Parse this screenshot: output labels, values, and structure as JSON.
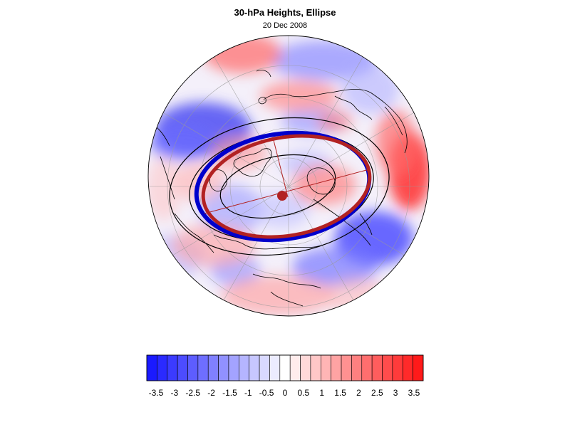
{
  "figure": {
    "title": "30-hPa Heights, Ellipse",
    "date": "20 Dec 2008"
  },
  "colorbar": {
    "colors": [
      "#1a1aff",
      "#2a2aff",
      "#3b3bff",
      "#4c4cff",
      "#5d5dff",
      "#6e6eff",
      "#8080ff",
      "#9191ff",
      "#a3a3ff",
      "#b5b5ff",
      "#c7c7ff",
      "#d9d9ff",
      "#ececff",
      "#ffffff",
      "#ffecec",
      "#ffd9d9",
      "#ffc7c7",
      "#ffb5b5",
      "#ffa3a3",
      "#ff9191",
      "#ff8080",
      "#ff6e6e",
      "#ff5d5d",
      "#ff4c4c",
      "#ff3b3b",
      "#ff2a2a",
      "#ff1a1a"
    ],
    "tick_labels": [
      "-3.5",
      "-3",
      "-2.5",
      "-2",
      "-1.5",
      "-1",
      "-0.5",
      "0",
      "0.5",
      "1",
      "1.5",
      "2",
      "2.5",
      "3",
      "3.5"
    ]
  },
  "legend_colors": {
    "ellipse_red": "#b22222",
    "ellipse_blue": "#0000cc",
    "contour": "#000000",
    "coast": "#000000",
    "grid": "#9a9a9a"
  }
}
